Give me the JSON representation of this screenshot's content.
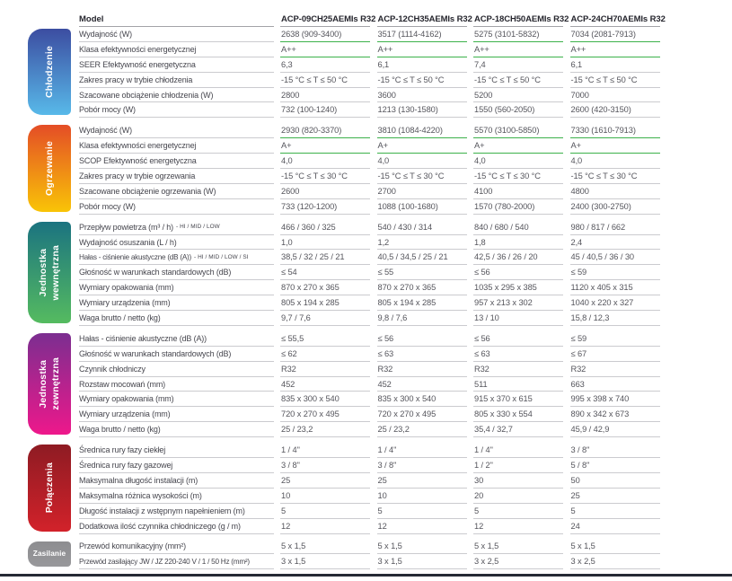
{
  "header": {
    "model_label": "Model",
    "models": [
      "ACP-09CH25AEMIs R32",
      "ACP-12CH35AEMIs R32",
      "ACP-18CH50AEMIs R32",
      "ACP-24CH70AEMIs R32"
    ]
  },
  "colors": {
    "green_underline": "#3cb14b",
    "row_line": "#cbcbcf",
    "header_line": "#a3a3a8",
    "header_text": "#26262e",
    "label_text": "#46464e",
    "value_text": "#55555c",
    "footer_rule": "#252a35",
    "tab_text": "#ffffff"
  },
  "sections": [
    {
      "id": "chlodzenie",
      "label": "Chłodzenie",
      "gradient_top": "#3c4da1",
      "gradient_bottom": "#58b9e9",
      "rows": [
        {
          "label": "Wydajność (W)",
          "green": true,
          "values": [
            "2638 (909-3400)",
            "3517 (1114-4162)",
            "5275 (3101-5832)",
            "7034 (2081-7913)"
          ]
        },
        {
          "label": "Klasa efektywności energetycznej",
          "green": true,
          "values": [
            "A++",
            "A++",
            "A++",
            "A++"
          ]
        },
        {
          "label": "SEER Efektywność energetyczna",
          "values": [
            "6,3",
            "6,1",
            "7,4",
            "6,1"
          ]
        },
        {
          "label": "Zakres pracy w trybie chłodzenia",
          "values": [
            "-15 °C ≤ T ≤ 50 °C",
            "-15 °C ≤ T ≤ 50 °C",
            "-15 °C ≤ T ≤ 50 °C",
            "-15 °C ≤ T ≤ 50 °C"
          ]
        },
        {
          "label": "Szacowane obciążenie chłodzenia (W)",
          "values": [
            "2800",
            "3600",
            "5200",
            "7000"
          ]
        },
        {
          "label": "Pobór mocy (W)",
          "values": [
            "732 (100-1240)",
            "1213 (130-1580)",
            "1550 (560-2050)",
            "2600 (420-3150)"
          ]
        }
      ]
    },
    {
      "id": "ogrzewanie",
      "label": "Ogrzewanie",
      "gradient_top": "#e44d26",
      "gradient_bottom": "#f9c407",
      "rows": [
        {
          "label": "Wydajność (W)",
          "green": true,
          "values": [
            "2930 (820-3370)",
            "3810 (1084-4220)",
            "5570 (3100-5850)",
            "7330 (1610-7913)"
          ]
        },
        {
          "label": "Klasa efektywności energetycznej",
          "green": true,
          "values": [
            "A+",
            "A+",
            "A+",
            "A+"
          ]
        },
        {
          "label": "SCOP Efektywność energetyczna",
          "values": [
            "4,0",
            "4,0",
            "4,0",
            "4,0"
          ]
        },
        {
          "label": "Zakres pracy w trybie ogrzewania",
          "values": [
            "-15 °C ≤ T ≤ 30 °C",
            "-15 °C ≤ T ≤ 30 °C",
            "-15 °C ≤ T ≤ 30 °C",
            "-15 °C ≤ T ≤ 30 °C"
          ]
        },
        {
          "label": "Szacowane obciążenie ogrzewania (W)",
          "values": [
            "2600",
            "2700",
            "4100",
            "4800"
          ]
        },
        {
          "label": "Pobór mocy (W)",
          "values": [
            "733 (120-1200)",
            "1088 (100-1680)",
            "1570 (780-2000)",
            "2400 (300-2750)"
          ]
        }
      ]
    },
    {
      "id": "jednostka-wewnetrzna",
      "label": "Jednostka\nwewnętrzna",
      "gradient_top": "#1b7380",
      "gradient_bottom": "#55bb60",
      "rows": [
        {
          "label": "Przepływ powietrza (m³ / h)",
          "label_small": "- HI / MID / LOW",
          "values": [
            "466 / 360 / 325",
            "540 / 430 / 314",
            "840 / 680 / 540",
            "980 / 817 / 662"
          ]
        },
        {
          "label": "Wydajność osuszania (L / h)",
          "values": [
            "1,0",
            "1,2",
            "1,8",
            "2,4"
          ]
        },
        {
          "label": "Hałas - ciśnienie akustyczne (dB (A))",
          "label_small": "- HI / MID / LOW / SI",
          "values": [
            "38,5 / 32 / 25 / 21",
            "40,5 / 34,5 / 25 / 21",
            "42,5 / 36 / 26 / 20",
            "45 / 40,5 / 36 / 30"
          ]
        },
        {
          "label": "Głośność w warunkach standardowych (dB)",
          "values": [
            "≤ 54",
            "≤ 55",
            "≤ 56",
            "≤ 59"
          ]
        },
        {
          "label": "Wymiary opakowania (mm)",
          "values": [
            "870 x 270 x 365",
            "870 x 270 x 365",
            "1035 x 295 x 385",
            "1120 x 405 x 315"
          ]
        },
        {
          "label": "Wymiary urządzenia (mm)",
          "values": [
            "805 x 194 x 285",
            "805 x 194 x 285",
            "957 x 213 x 302",
            "1040 x 220 x 327"
          ]
        },
        {
          "label": "Waga brutto / netto (kg)",
          "values": [
            "9,7 / 7,6",
            "9,8 / 7,6",
            "13 / 10",
            "15,8 / 12,3"
          ]
        }
      ]
    },
    {
      "id": "jednostka-zewnetrzna",
      "label": "Jednostka\nzewnętrzna",
      "gradient_top": "#7b2e90",
      "gradient_bottom": "#ee188b",
      "rows": [
        {
          "label": "Hałas - ciśnienie akustyczne (dB (A))",
          "values": [
            "≤ 55,5",
            "≤ 56",
            "≤ 56",
            "≤ 59"
          ]
        },
        {
          "label": "Głośność w warunkach standardowych (dB)",
          "values": [
            "≤ 62",
            "≤ 63",
            "≤ 63",
            "≤ 67"
          ]
        },
        {
          "label": "Czynnik chłodniczy",
          "values": [
            "R32",
            "R32",
            "R32",
            "R32"
          ]
        },
        {
          "label": "Rozstaw mocowań (mm)",
          "values": [
            "452",
            "452",
            "511",
            "663"
          ]
        },
        {
          "label": "Wymiary opakowania (mm)",
          "values": [
            "835 x 300 x 540",
            "835 x 300 x 540",
            "915 x 370 x 615",
            "995 x 398 x 740"
          ]
        },
        {
          "label": "Wymiary urządzenia (mm)",
          "values": [
            "720 x 270 x 495",
            "720 x 270 x 495",
            "805 x 330 x 554",
            "890 x 342 x 673"
          ]
        },
        {
          "label": "Waga brutto / netto (kg)",
          "values": [
            "25 / 23,2",
            "25 / 23,2",
            "35,4 / 32,7",
            "45,9 / 42,9"
          ]
        }
      ]
    },
    {
      "id": "polaczenia",
      "label": "Połączenia",
      "gradient_top": "#8e1b23",
      "gradient_bottom": "#d2222a",
      "rows": [
        {
          "label": "Średnica rury fazy ciekłej",
          "values": [
            "1 / 4\"",
            "1 / 4\"",
            "1 / 4\"",
            "3 / 8\""
          ]
        },
        {
          "label": "Średnica rury fazy gazowej",
          "values": [
            "3 / 8\"",
            "3 / 8\"",
            "1 / 2\"",
            "5 / 8\""
          ]
        },
        {
          "label": "Maksymalna długość instalacji (m)",
          "values": [
            "25",
            "25",
            "30",
            "50"
          ]
        },
        {
          "label": "Maksymalna różnica wysokości (m)",
          "values": [
            "10",
            "10",
            "20",
            "25"
          ]
        },
        {
          "label": "Długość instalacji z wstępnym napełnieniem (m)",
          "values": [
            "5",
            "5",
            "5",
            "5"
          ]
        },
        {
          "label": "Dodatkowa ilość czynnika chłodniczego (g / m)",
          "values": [
            "12",
            "12",
            "12",
            "24"
          ]
        }
      ]
    },
    {
      "id": "zasilanie",
      "label": "Zasilanie",
      "small_tab": true,
      "gradient_top": "#8d8d90",
      "gradient_bottom": "#98989b",
      "rows": [
        {
          "label": "Przewód komunikacyjny (mm²)",
          "values": [
            "5 x 1,5",
            "5 x 1,5",
            "5 x 1,5",
            "5 x 1,5"
          ]
        },
        {
          "label": "Przewód zasilający JW / JZ 220-240 V / 1 / 50 Hz (mm²)",
          "values": [
            "3 x 1,5",
            "3 x 1,5",
            "3 x 2,5",
            "3 x 2,5"
          ]
        }
      ]
    }
  ]
}
